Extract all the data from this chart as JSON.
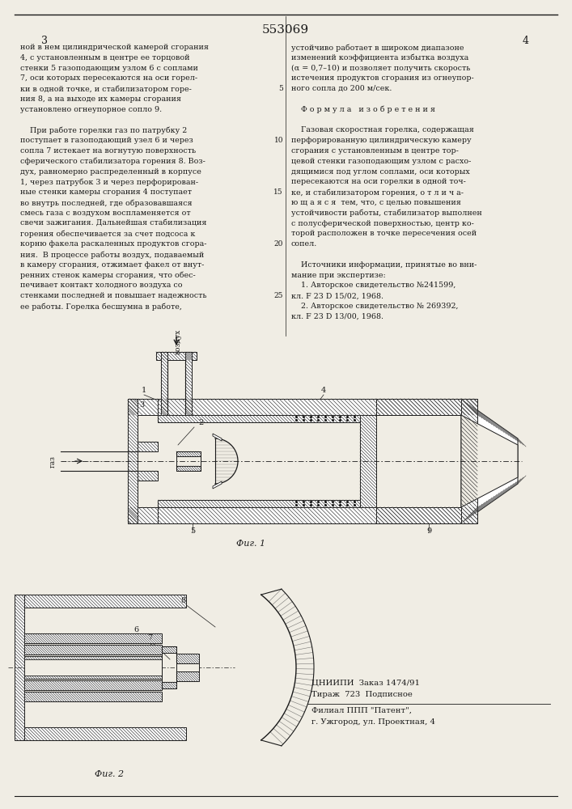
{
  "patent_number": "553069",
  "page_left": "3",
  "page_right": "4",
  "bg_color": "#f0ede4",
  "text_color": "#1a1a1a",
  "hatch_color": "#444444",
  "left_column_text": [
    "ной в нем цилиндрической камерой сгорания",
    "4, с установленным в центре ее торцовой",
    "стенки 5 газоподающим узлом 6 с соплами",
    "7, оси которых пересекаются на оси горел-",
    "ки в одной точке, и стабилизатором горе-",
    "ния 8, а на выходе их камеры сгорания",
    "установлено огнеупорное сопло 9.",
    "",
    "    При работе горелки газ по патрубку 2",
    "поступает в газоподающий узел 6 и через",
    "сопла 7 истекает на вогнутую поверхность",
    "сферического стабилизатора горения 8. Воз-",
    "дух, равномерно распределенный в корпусе",
    "1, через патрубок 3 и через перфорирован-",
    "ные стенки камеры сгорания 4 поступает",
    "во внутрь последней, где образовавшаяся",
    "смесь газа с воздухом воспламеняется от",
    "свечи зажигания. Дальнейшая стабилизация",
    "горения обеспечивается за счет подсоса к",
    "корню факела раскаленных продуктов сгора-",
    "ния.  В процессе работы воздух, подаваемый",
    "в камеру сгорания, отжимает факел от внут-",
    "ренних стенок камеры сгорания, что обес-",
    "печивает контакт холодного воздуха со",
    "стенками последней и повышает надежность",
    "ее работы. Горелка бесшумна в работе,"
  ],
  "right_column_text": [
    "устойчиво работает в широком диапазоне",
    "изменений коэффициента избытка воздуха",
    "(α = 0,7–10) и позволяет получить скорость",
    "истечения продуктов сгорания из огнеупор-",
    "ного сопла до 200 м/сек.",
    "",
    "    Ф о р м у л а   и з о б р е т е н и я",
    "",
    "    Газовая скоростная горелка, содержащая",
    "перфорированную цилиндрическую камеру",
    "сгорания с установленным в центре тор-",
    "цевой стенки газоподающим узлом с расхо-",
    "дящимися под углом соплами, оси которых",
    "пересекаются на оси горелки в одной точ-",
    "ке, и стабилизатором горения, о т л и ч а-",
    "ю щ а я с я  тем, что, с целью повышения",
    "устойчивости работы, стабилизатор выполнен",
    "с полусферической поверхностью, центр ко-",
    "торой расположен в точке пересечения осей",
    "сопел.",
    "",
    "    Источники информации, принятые во вни-",
    "мание при экспертизе:",
    "    1. Авторское свидетельство №241599,",
    "кл. F 23 D 15/02, 1968.",
    "    2. Авторское свидетельство № 269392,",
    "кл. F 23 D 13/00, 1968."
  ],
  "bottom_info_lines": [
    "ЦНИИПИ  Заказ 1474/91",
    "Тираж  723  Подписное",
    "Филиал ППП \"Патент\",",
    "г. Ужгород, ул. Проектная, 4"
  ],
  "fig1_label": "Фиг. 1",
  "fig2_label": "Фиг. 2",
  "line_numbers": [
    5,
    10,
    15,
    20,
    25
  ]
}
